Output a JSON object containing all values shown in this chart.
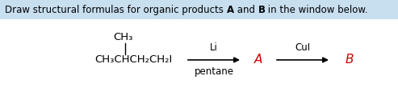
{
  "title_text": "Draw structural formulas for organic products ",
  "title_bold_a": "A",
  "title_and": " and ",
  "title_bold_b": "B",
  "title_end": " in the window below.",
  "title_fontsize": 8.5,
  "title_bg_color": "#c8dff0",
  "formula_main": "CH₃CHCH₂CH₂I",
  "formula_branch": "CH₃",
  "reagent1_top": "Li",
  "reagent1_bottom": "pentane",
  "reagent2_top": "CuI",
  "label_A": "A",
  "label_B": "B",
  "label_A_color": "#cc0000",
  "label_B_color": "#cc0000",
  "text_color": "#000000",
  "background_color": "#ffffff",
  "formula_fontsize": 9.5,
  "reagent_fontsize": 8.5,
  "label_fontsize": 11
}
